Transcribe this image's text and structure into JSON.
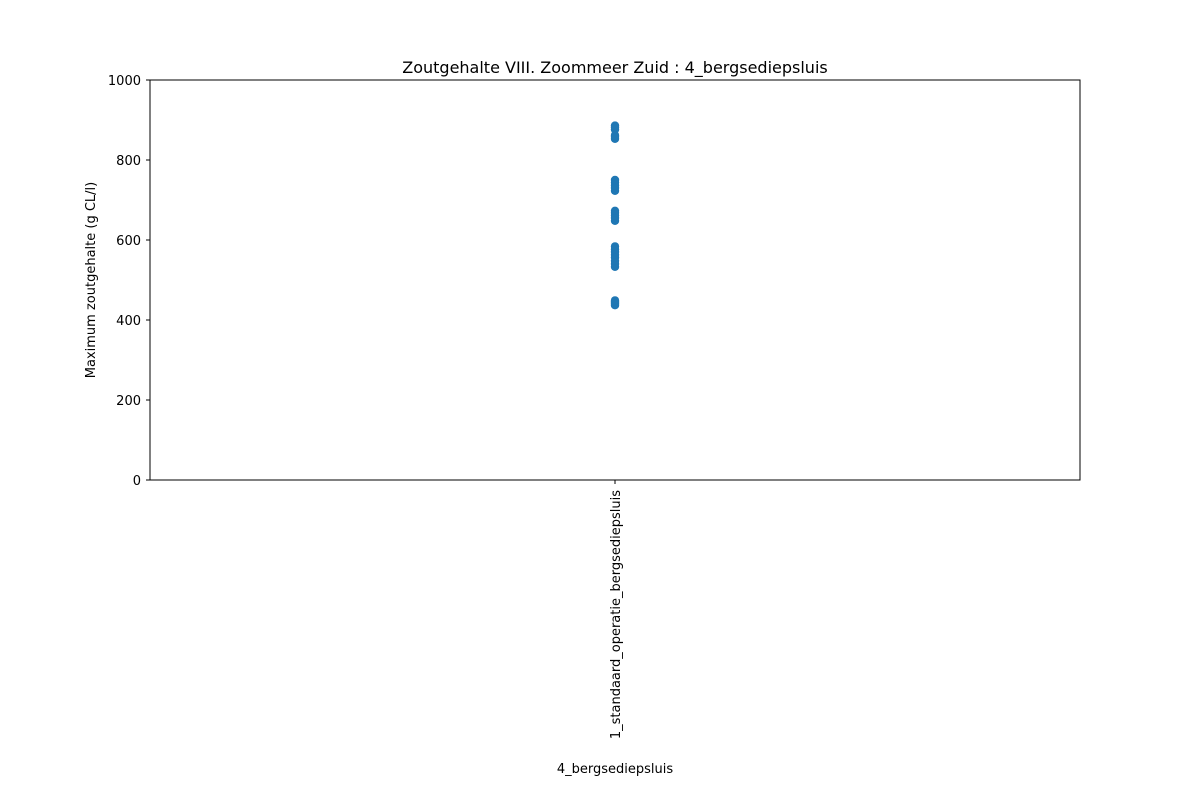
{
  "chart_data": {
    "type": "scatter",
    "title": "Zoutgehalte VIII. Zoommeer Zuid : 4_bergsediepsluis",
    "xlabel": "4_bergsediepsluis",
    "ylabel": "Maximum zoutgehalte (g CL/l)",
    "categories": [
      "1_standaard_operatie_bergsediepsluis"
    ],
    "ylim": [
      0,
      1000
    ],
    "yticks": [
      0,
      200,
      400,
      600,
      800,
      1000
    ],
    "grid": false,
    "point_color": "#1f77b4",
    "series": [
      {
        "category": "1_standaard_operatie_bergsediepsluis",
        "values": [
          437,
          440,
          443,
          446,
          449,
          533,
          540,
          548,
          556,
          563,
          570,
          577,
          584,
          648,
          655,
          662,
          668,
          673,
          723,
          730,
          737,
          744,
          750,
          853,
          858,
          862,
          876,
          881,
          886
        ]
      }
    ]
  }
}
